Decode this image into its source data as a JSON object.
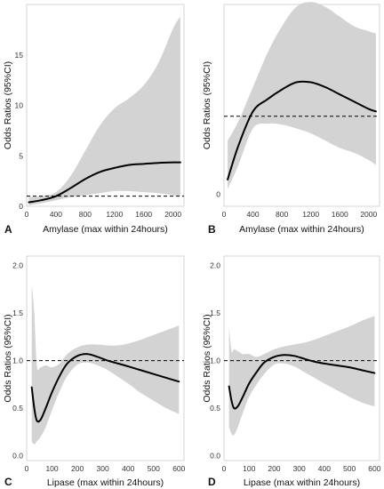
{
  "figure": {
    "colors": {
      "band": "#d3d3d3",
      "curve": "#000000",
      "reference": "#000000",
      "frame": "#cccccc"
    }
  },
  "chart_data": [
    {
      "panel": "A",
      "type": "line",
      "xlabel": "Amylase (max within 24hours)",
      "ylabel": "Odds Ratios (95%CI)",
      "xlim": [
        0,
        2150
      ],
      "ylim": [
        0,
        20
      ],
      "xticks": [
        0,
        400,
        800,
        1200,
        1600,
        2000
      ],
      "yticks": [
        0,
        5,
        10,
        15
      ],
      "reference_line": 1.0,
      "x": [
        30,
        200,
        400,
        600,
        800,
        1000,
        1200,
        1400,
        1600,
        1800,
        2000,
        2100
      ],
      "estimate": [
        0.4,
        0.6,
        1.0,
        1.8,
        2.7,
        3.4,
        3.8,
        4.1,
        4.2,
        4.3,
        4.35,
        4.35
      ],
      "lower": [
        0.1,
        0.3,
        0.6,
        0.9,
        1.1,
        1.3,
        1.5,
        1.5,
        1.4,
        1.3,
        1.1,
        1.0
      ],
      "upper": [
        0.9,
        1.0,
        1.4,
        3.0,
        5.5,
        8.0,
        9.7,
        10.7,
        12.0,
        14.2,
        17.6,
        18.8
      ]
    },
    {
      "panel": "B",
      "type": "line",
      "xlabel": "Amylase (max within 24hours)",
      "ylabel": "Odds Ratios (95%CI)",
      "xlim": [
        0,
        2150
      ],
      "ylim": [
        -0.25,
        3.9
      ],
      "xticks": [
        0,
        400,
        800,
        1200,
        1600,
        2000
      ],
      "yticks": [
        0
      ],
      "reference_line": 1.6,
      "x": [
        50,
        200,
        400,
        600,
        800,
        1000,
        1200,
        1400,
        1600,
        1800,
        2000,
        2100
      ],
      "estimate": [
        0.3,
        1.0,
        1.7,
        1.95,
        2.15,
        2.3,
        2.3,
        2.2,
        2.05,
        1.9,
        1.75,
        1.7
      ],
      "lower": [
        0.1,
        0.6,
        1.35,
        1.45,
        1.43,
        1.35,
        1.25,
        1.1,
        0.95,
        0.85,
        0.7,
        0.6
      ],
      "upper": [
        1.1,
        1.5,
        2.2,
        2.9,
        3.45,
        3.85,
        3.95,
        3.85,
        3.65,
        3.45,
        3.35,
        3.3
      ]
    },
    {
      "panel": "C",
      "type": "line",
      "xlabel": "Lipase (max within 24hours)",
      "ylabel": "Odds Ratios (95%CI)",
      "xlim": [
        0,
        620
      ],
      "ylim": [
        -0.05,
        2.1
      ],
      "xticks": [
        0,
        100,
        200,
        300,
        400,
        500,
        600
      ],
      "yticks": [
        0.0,
        0.5,
        1.0,
        1.5,
        2.0
      ],
      "reference_line": 1.0,
      "x": [
        20,
        30,
        40,
        55,
        75,
        100,
        130,
        160,
        200,
        240,
        280,
        320,
        360,
        400,
        450,
        500,
        550,
        600
      ],
      "estimate": [
        0.72,
        0.5,
        0.37,
        0.38,
        0.5,
        0.67,
        0.84,
        0.97,
        1.05,
        1.07,
        1.04,
        1.0,
        0.97,
        0.94,
        0.9,
        0.86,
        0.82,
        0.78
      ],
      "lower": [
        0.15,
        0.12,
        0.15,
        0.2,
        0.3,
        0.48,
        0.68,
        0.84,
        0.96,
        0.98,
        0.95,
        0.9,
        0.83,
        0.76,
        0.66,
        0.58,
        0.5,
        0.44
      ],
      "upper": [
        1.8,
        1.5,
        0.95,
        0.93,
        0.95,
        0.93,
        0.97,
        1.07,
        1.14,
        1.17,
        1.17,
        1.16,
        1.16,
        1.18,
        1.22,
        1.27,
        1.32,
        1.37
      ]
    },
    {
      "panel": "D",
      "type": "line",
      "xlabel": "Lipase (max within 24hours)",
      "ylabel": "Odds Ratios (95%CI)",
      "xlim": [
        0,
        620
      ],
      "ylim": [
        -0.05,
        2.1
      ],
      "xticks": [
        0,
        100,
        200,
        300,
        400,
        500,
        600
      ],
      "yticks": [
        0.0,
        0.5,
        1.0,
        1.5,
        2.0
      ],
      "reference_line": 1.0,
      "x": [
        20,
        30,
        40,
        55,
        75,
        100,
        130,
        160,
        200,
        240,
        280,
        320,
        360,
        400,
        450,
        500,
        550,
        600
      ],
      "estimate": [
        0.73,
        0.58,
        0.5,
        0.52,
        0.62,
        0.76,
        0.88,
        0.98,
        1.04,
        1.06,
        1.05,
        1.02,
        0.99,
        0.97,
        0.95,
        0.93,
        0.9,
        0.87
      ],
      "lower": [
        0.3,
        0.23,
        0.22,
        0.3,
        0.45,
        0.62,
        0.75,
        0.86,
        0.96,
        0.97,
        0.94,
        0.88,
        0.82,
        0.76,
        0.69,
        0.62,
        0.56,
        0.52
      ],
      "upper": [
        1.35,
        1.1,
        1.12,
        1.1,
        1.07,
        1.07,
        1.04,
        1.07,
        1.12,
        1.15,
        1.17,
        1.19,
        1.22,
        1.26,
        1.31,
        1.36,
        1.42,
        1.47
      ]
    }
  ]
}
